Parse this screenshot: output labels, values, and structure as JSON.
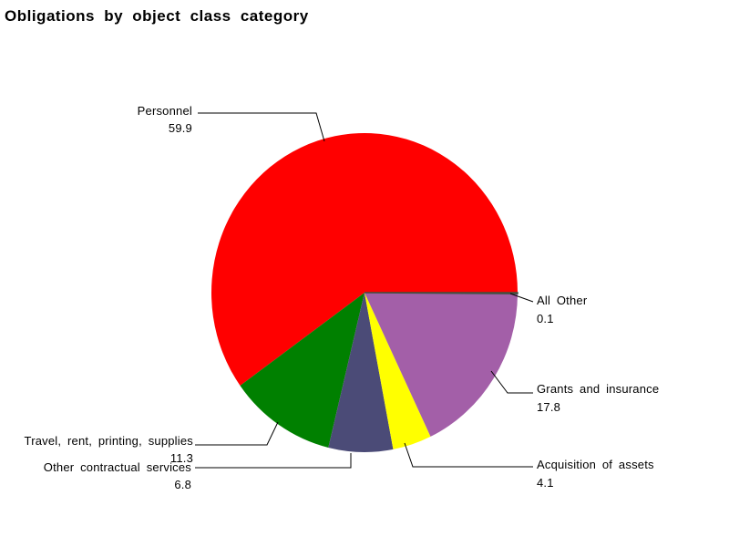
{
  "title": "Obligations by object class category",
  "chart_data": {
    "type": "pie",
    "title": "Obligations by object class category",
    "unit": "percent",
    "total": 100.0,
    "start_angle_deg": 0,
    "direction": "counterclockwise",
    "legend": "none (leader-line callout labels)",
    "slices": [
      {
        "label": "Personnel",
        "value": 59.9,
        "color": "#FF0000"
      },
      {
        "label": "Travel, rent, printing, supplies",
        "value": 11.3,
        "color": "#008000"
      },
      {
        "label": "Other contractual services",
        "value": 6.8,
        "color": "#4B4B77"
      },
      {
        "label": "Acquisition of assets",
        "value": 4.1,
        "color": "#FFFF00"
      },
      {
        "label": "Grants and insurance",
        "value": 17.8,
        "color": "#A35FA8"
      },
      {
        "label": "All Other",
        "value": 0.1,
        "color": "#405040"
      }
    ]
  }
}
